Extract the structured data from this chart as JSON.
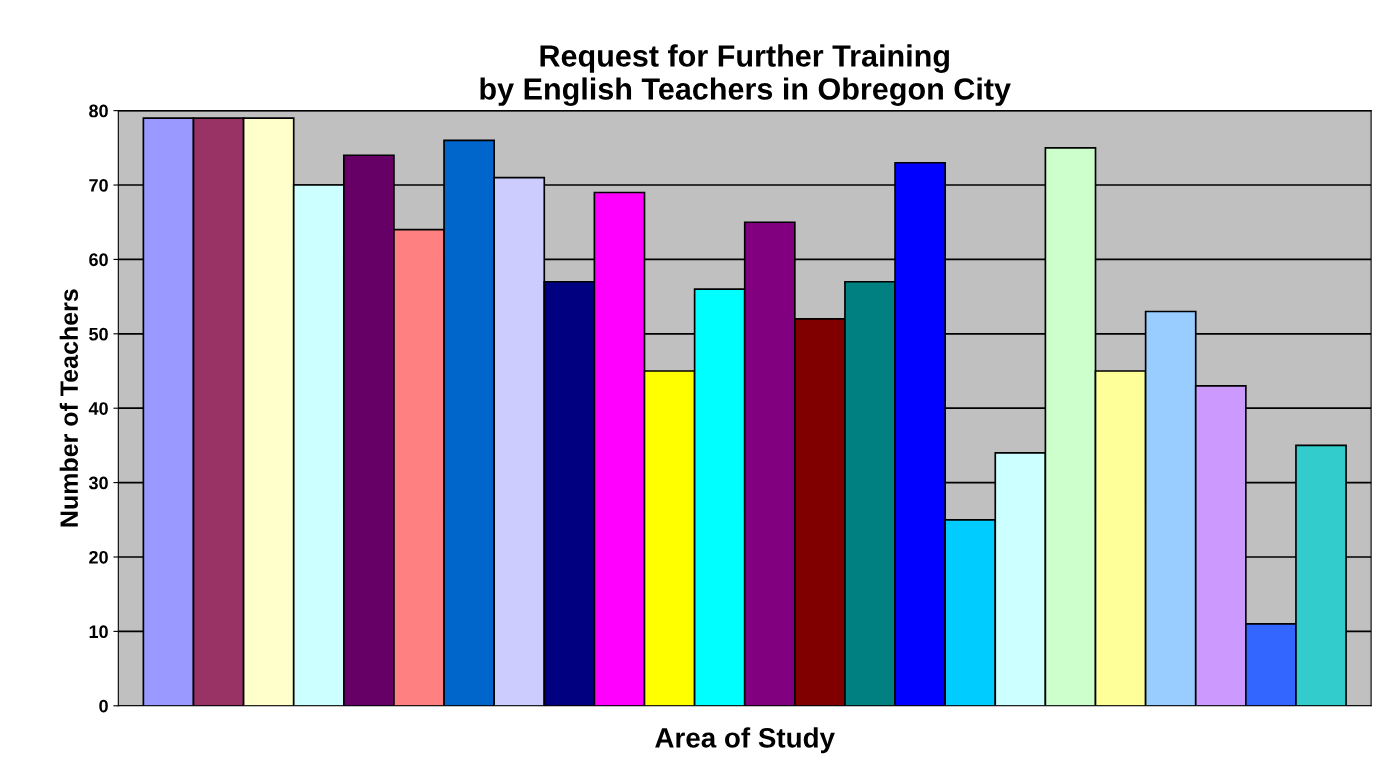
{
  "chart_data": {
    "type": "bar",
    "title": "Request for Further Training\nby English Teachers in Obregon City",
    "xlabel": "Area of Study",
    "ylabel": "Number of Teachers",
    "categories": [
      null,
      null,
      null,
      null,
      null,
      null,
      null,
      null,
      null,
      null,
      null,
      null,
      null,
      null,
      null,
      null,
      null,
      null,
      null,
      null,
      null,
      null,
      null,
      null
    ],
    "values": [
      79,
      79,
      79,
      70,
      74,
      64,
      76,
      71,
      57,
      69,
      45,
      56,
      65,
      52,
      57,
      73,
      25,
      34,
      75,
      45,
      53,
      43,
      11,
      35
    ],
    "colors": [
      "#9999ff",
      "#993366",
      "#ffffcc",
      "#ccffff",
      "#660066",
      "#ff8080",
      "#0066cc",
      "#ccccff",
      "#000080",
      "#ff00ff",
      "#ffff00",
      "#00ffff",
      "#800080",
      "#800000",
      "#008080",
      "#0000ff",
      "#00ccff",
      "#ccffff",
      "#ccffcc",
      "#ffff99",
      "#99ccff",
      "#cc99ff",
      "#3366ff",
      "#33cccc"
    ],
    "ylim": [
      0,
      80
    ],
    "yticks": [
      0,
      10,
      20,
      30,
      40,
      50,
      60,
      70,
      80
    ],
    "grid": "y"
  }
}
